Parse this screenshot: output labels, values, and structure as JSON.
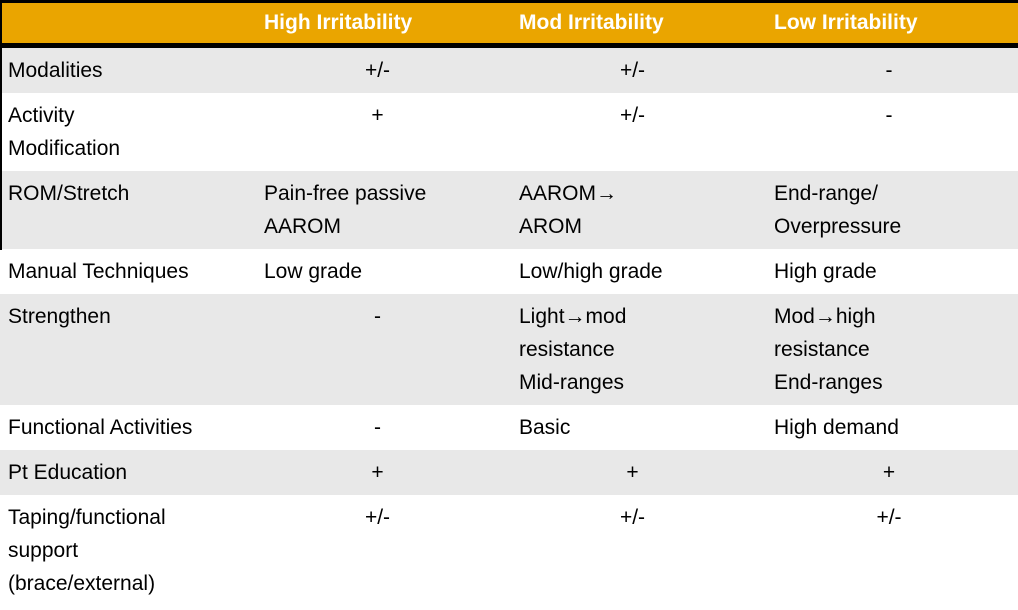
{
  "table": {
    "columns": [
      "High Irritability",
      "Mod Irritability",
      "Low Irritability"
    ],
    "rows": [
      {
        "label": "Modalities",
        "high": "+/-",
        "mod": "+/-",
        "low": "-"
      },
      {
        "label": "Activity\nModification",
        "high": "+",
        "mod": "+/-",
        "low": "-"
      },
      {
        "label": "ROM/Stretch",
        "high": "Pain-free passive\nAAROM",
        "mod": "AAROM→\nAROM",
        "low": "End-range/\nOverpressure"
      },
      {
        "label": "Manual Techniques",
        "high": "Low grade",
        "mod": "Low/high grade",
        "low": "High grade"
      },
      {
        "label": "Strengthen",
        "high": "-",
        "mod": "Light→mod\nresistance\nMid-ranges",
        "low": "Mod→high\nresistance\nEnd-ranges"
      },
      {
        "label": "Functional Activities",
        "high": "-",
        "mod": "Basic",
        "low": "High demand"
      },
      {
        "label": "Pt Education",
        "high": "+",
        "mod": "+",
        "low": "+"
      },
      {
        "label": "Taping/functional\nsupport\n(brace/external)",
        "high": "+/-",
        "mod": "+/-",
        "low": "+/-"
      }
    ]
  },
  "colors": {
    "header_bg": "#EAA500",
    "shaded_row_bg": "#E8E8E8",
    "border": "#000000",
    "header_text": "#FFFFFF",
    "body_text": "#000000"
  }
}
